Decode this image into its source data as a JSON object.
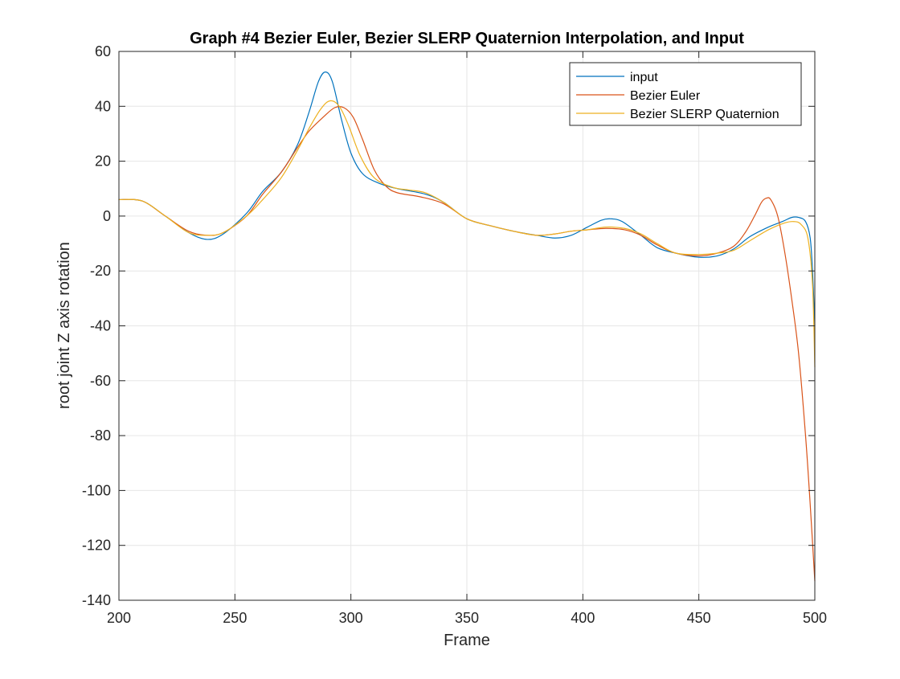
{
  "chart_data": {
    "type": "line",
    "title": "Graph #4 Bezier Euler, Bezier SLERP Quaternion Interpolation, and Input",
    "xlabel": "Frame",
    "ylabel": "root joint Z axis rotation",
    "xlim": [
      200,
      500
    ],
    "ylim": [
      -140,
      60
    ],
    "xticks": [
      200,
      250,
      300,
      350,
      400,
      450,
      500
    ],
    "yticks": [
      60,
      40,
      20,
      0,
      -20,
      -40,
      -60,
      -80,
      -100,
      -120,
      -140
    ],
    "grid": true,
    "legend_position": "top-right",
    "series": [
      {
        "name": "input",
        "color": "#0072BD",
        "points": [
          [
            200,
            6
          ],
          [
            210,
            5.5
          ],
          [
            220,
            0
          ],
          [
            230,
            -6
          ],
          [
            238,
            -8.5
          ],
          [
            245,
            -6.5
          ],
          [
            255,
            1
          ],
          [
            262,
            9
          ],
          [
            270,
            16
          ],
          [
            277,
            26
          ],
          [
            282,
            38
          ],
          [
            286,
            49
          ],
          [
            289,
            52.5
          ],
          [
            292,
            49
          ],
          [
            296,
            35
          ],
          [
            300,
            23
          ],
          [
            305,
            15.5
          ],
          [
            312,
            12
          ],
          [
            320,
            10
          ],
          [
            332,
            8
          ],
          [
            340,
            5
          ],
          [
            350,
            -1
          ],
          [
            360,
            -3.5
          ],
          [
            370,
            -5.5
          ],
          [
            380,
            -7
          ],
          [
            388,
            -8
          ],
          [
            395,
            -7
          ],
          [
            402,
            -4
          ],
          [
            408,
            -1.5
          ],
          [
            412,
            -1
          ],
          [
            417,
            -2
          ],
          [
            425,
            -7
          ],
          [
            432,
            -11.5
          ],
          [
            440,
            -13.5
          ],
          [
            450,
            -15
          ],
          [
            458,
            -14.5
          ],
          [
            465,
            -12
          ],
          [
            472,
            -7.5
          ],
          [
            480,
            -4
          ],
          [
            486,
            -2
          ],
          [
            490,
            -0.5
          ],
          [
            493,
            -0.5
          ],
          [
            496,
            -2
          ],
          [
            498,
            -8
          ],
          [
            499,
            -20
          ],
          [
            500,
            -40
          ]
        ]
      },
      {
        "name": "Bezier Euler",
        "color": "#D95319",
        "points": [
          [
            200,
            6
          ],
          [
            210,
            5.5
          ],
          [
            220,
            0
          ],
          [
            230,
            -5.5
          ],
          [
            238,
            -7
          ],
          [
            245,
            -6
          ],
          [
            255,
            0
          ],
          [
            262,
            8
          ],
          [
            270,
            16
          ],
          [
            277,
            25
          ],
          [
            282,
            31
          ],
          [
            288,
            36
          ],
          [
            293,
            39.5
          ],
          [
            297,
            39.5
          ],
          [
            301,
            36
          ],
          [
            305,
            28
          ],
          [
            310,
            17
          ],
          [
            315,
            11
          ],
          [
            320,
            8.5
          ],
          [
            330,
            7
          ],
          [
            340,
            4.5
          ],
          [
            350,
            -1
          ],
          [
            360,
            -3.5
          ],
          [
            370,
            -5.5
          ],
          [
            380,
            -7
          ],
          [
            388,
            -6.5
          ],
          [
            395,
            -5.5
          ],
          [
            402,
            -5
          ],
          [
            410,
            -4.5
          ],
          [
            418,
            -5
          ],
          [
            425,
            -7
          ],
          [
            432,
            -10.5
          ],
          [
            440,
            -13.5
          ],
          [
            450,
            -14.5
          ],
          [
            458,
            -13.5
          ],
          [
            465,
            -11
          ],
          [
            470,
            -6
          ],
          [
            474,
            0
          ],
          [
            477,
            5
          ],
          [
            479,
            6.5
          ],
          [
            481,
            6
          ],
          [
            484,
            0
          ],
          [
            487,
            -13
          ],
          [
            490,
            -30
          ],
          [
            493,
            -50
          ],
          [
            496,
            -80
          ],
          [
            498,
            -105
          ],
          [
            500,
            -133
          ]
        ]
      },
      {
        "name": "Bezier SLERP Quaternion",
        "color": "#EDB120",
        "points": [
          [
            200,
            6
          ],
          [
            210,
            5.5
          ],
          [
            220,
            0
          ],
          [
            230,
            -6
          ],
          [
            238,
            -7
          ],
          [
            245,
            -6
          ],
          [
            255,
            0
          ],
          [
            262,
            6
          ],
          [
            270,
            14
          ],
          [
            277,
            24
          ],
          [
            282,
            32
          ],
          [
            287,
            39
          ],
          [
            291,
            42
          ],
          [
            295,
            40
          ],
          [
            299,
            33
          ],
          [
            304,
            22
          ],
          [
            310,
            14
          ],
          [
            318,
            10.5
          ],
          [
            325,
            9.5
          ],
          [
            332,
            8.5
          ],
          [
            340,
            5
          ],
          [
            350,
            -1
          ],
          [
            360,
            -3.5
          ],
          [
            370,
            -5.5
          ],
          [
            380,
            -7
          ],
          [
            388,
            -6.5
          ],
          [
            395,
            -5.5
          ],
          [
            402,
            -5
          ],
          [
            410,
            -4
          ],
          [
            418,
            -4.5
          ],
          [
            425,
            -6.5
          ],
          [
            432,
            -10
          ],
          [
            440,
            -13.5
          ],
          [
            450,
            -14
          ],
          [
            458,
            -13.5
          ],
          [
            465,
            -12.5
          ],
          [
            472,
            -9
          ],
          [
            480,
            -5
          ],
          [
            487,
            -2.5
          ],
          [
            491,
            -2
          ],
          [
            494,
            -3
          ],
          [
            497,
            -8
          ],
          [
            499,
            -25
          ],
          [
            500,
            -55
          ]
        ]
      }
    ]
  }
}
